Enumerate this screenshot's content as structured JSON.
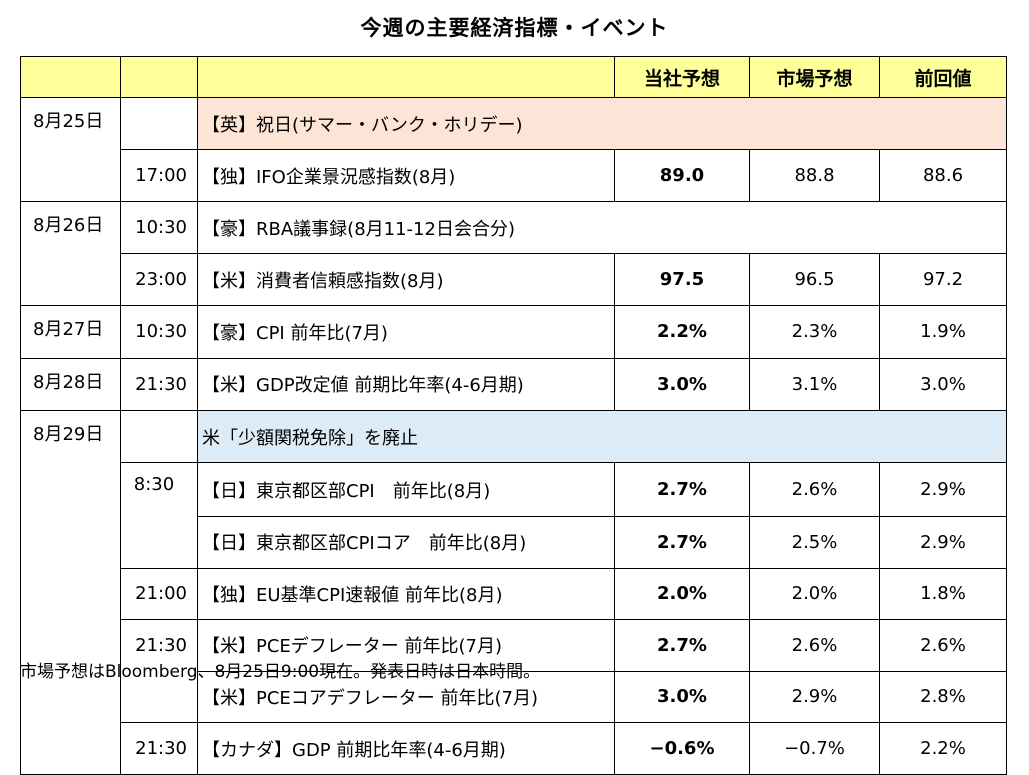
{
  "title": "今週の主要経済指標・イベント",
  "headers": {
    "forecast": "当社予想",
    "consensus": "市場予想",
    "previous": "前回値"
  },
  "rows": [
    {
      "date": "8月25日",
      "time": "",
      "event": "【英】祝日(サマー・バンク・ホリデー)",
      "forecast": "",
      "consensus": "",
      "previous": ""
    },
    {
      "date": "",
      "time": "17:00",
      "event": "【独】IFO企業景況感指数(8月)",
      "forecast": "89.0",
      "consensus": "88.8",
      "previous": "88.6"
    },
    {
      "date": "8月26日",
      "time": "10:30",
      "event": "【豪】RBA議事録(8月11-12日会合分)",
      "forecast": "",
      "consensus": "",
      "previous": ""
    },
    {
      "date": "",
      "time": "23:00",
      "event": "【米】消費者信頼感指数(8月)",
      "forecast": "97.5",
      "consensus": "96.5",
      "previous": "97.2"
    },
    {
      "date": "8月27日",
      "time": "10:30",
      "event": "【豪】CPI 前年比(7月)",
      "forecast": "2.2%",
      "consensus": "2.3%",
      "previous": "1.9%"
    },
    {
      "date": "8月28日",
      "time": "21:30",
      "event": "【米】GDP改定値 前期比年率(4-6月期)",
      "forecast": "3.0%",
      "consensus": "3.1%",
      "previous": "3.0%"
    },
    {
      "date": "8月29日",
      "time": "",
      "event": "米「少額関税免除」を廃止",
      "forecast": "",
      "consensus": "",
      "previous": ""
    },
    {
      "date": "",
      "time": "8:30",
      "event": "【日】東京都区部CPI　前年比(8月)",
      "forecast": "2.7%",
      "consensus": "2.6%",
      "previous": "2.9%"
    },
    {
      "date": "",
      "time": "",
      "event": "【日】東京都区部CPIコア　前年比(8月)",
      "forecast": "2.7%",
      "consensus": "2.5%",
      "previous": "2.9%"
    },
    {
      "date": "",
      "time": "21:00",
      "event": "【独】EU基準CPI速報値 前年比(8月)",
      "forecast": "2.0%",
      "consensus": "2.0%",
      "previous": "1.8%"
    },
    {
      "date": "",
      "time": "21:30",
      "event": "【米】PCEデフレーター 前年比(7月)",
      "forecast": "2.7%",
      "consensus": "2.6%",
      "previous": "2.6%"
    },
    {
      "date": "",
      "time": "",
      "event": "【米】PCEコアデフレーター 前年比(7月)",
      "forecast": "3.0%",
      "consensus": "2.9%",
      "previous": "2.8%"
    },
    {
      "date": "",
      "time": "21:30",
      "event": "【カナダ】GDP 前期比年率(4-6月期)",
      "forecast": "−0.6%",
      "consensus": "−0.7%",
      "previous": "2.2%"
    }
  ],
  "footer": "市場予想はBloomberg、8月25日9:00現在。発表日時は日本時間。",
  "colors": {
    "header_bg": "#ffff99",
    "holiday_bg": "#fce4d6",
    "note_bg": "#ddebf7"
  }
}
